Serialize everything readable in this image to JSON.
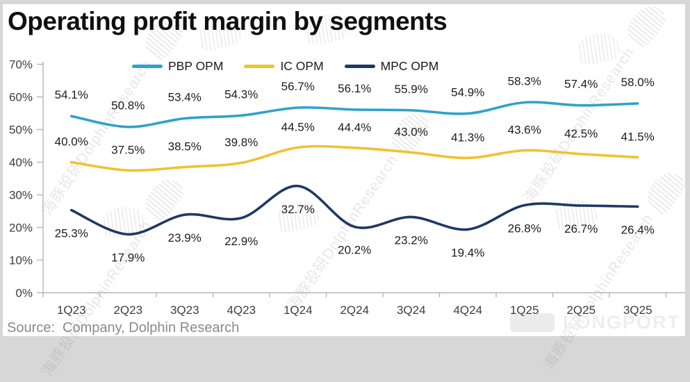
{
  "title": "Operating profit margin by segments",
  "source_note": "Source:  Company, Dolphin Research",
  "watermark": {
    "dolphin_text": "海豚投研DolphinResearch",
    "brand": "LONGPORT"
  },
  "chart_data": {
    "type": "line",
    "title": "Operating profit margin by segments",
    "categories": [
      "1Q23",
      "2Q23",
      "3Q23",
      "4Q23",
      "1Q24",
      "2Q24",
      "3Q24",
      "4Q24",
      "1Q25",
      "2Q25",
      "3Q25"
    ],
    "series": [
      {
        "name": "PBP OPM",
        "color": "#2EA3C9",
        "values": [
          54.1,
          50.8,
          53.4,
          54.3,
          56.7,
          56.1,
          55.9,
          54.9,
          58.3,
          57.4,
          58.0
        ]
      },
      {
        "name": "IC OPM",
        "color": "#F0C22F",
        "values": [
          40.0,
          37.5,
          38.5,
          39.8,
          44.5,
          44.4,
          43.0,
          41.3,
          43.6,
          42.5,
          41.5
        ]
      },
      {
        "name": "MPC OPM",
        "color": "#1F3864",
        "values": [
          25.3,
          17.9,
          23.9,
          22.9,
          32.7,
          20.2,
          23.2,
          19.4,
          26.8,
          26.7,
          26.4
        ]
      }
    ],
    "xlabel": "",
    "ylabel": "",
    "ylim": [
      0,
      70
    ],
    "y_tick_step": 10,
    "y_tick_suffix": "%",
    "data_label_decimals": 1,
    "data_label_suffix": "%",
    "grid": false,
    "legend_position": "top",
    "smooth_lines": true
  }
}
